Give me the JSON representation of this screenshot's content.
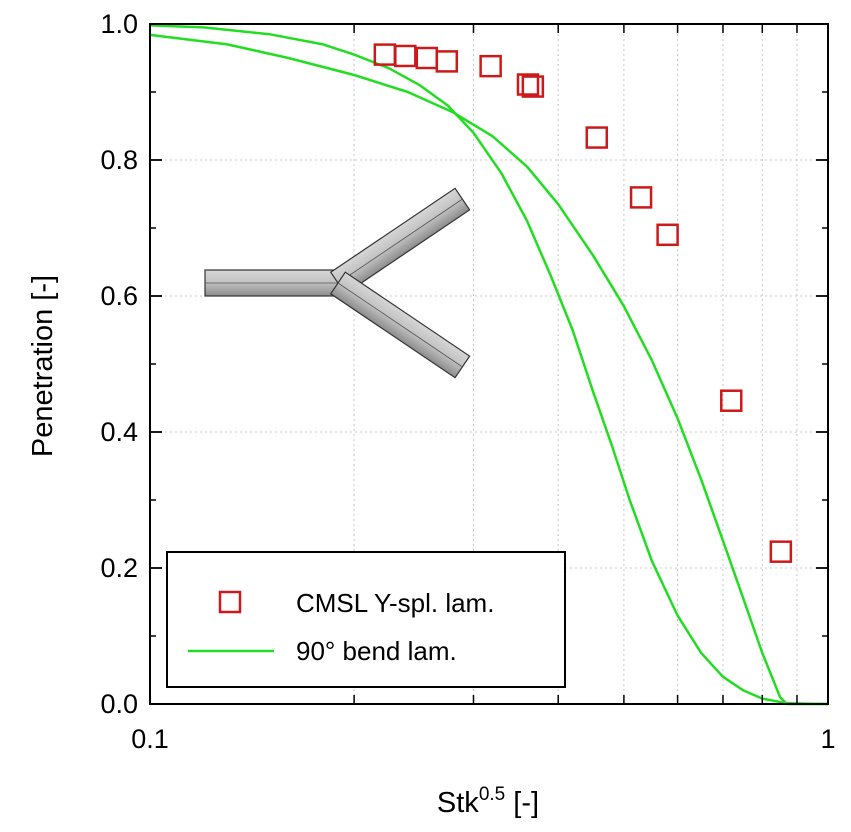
{
  "chart_data": {
    "type": "scatter",
    "xscale": "log",
    "xlim": [
      0.1,
      1
    ],
    "ylim": [
      0.0,
      1.0
    ],
    "x_tick_labels": [
      {
        "value": 0.1,
        "label": "0.1"
      },
      {
        "value": 1,
        "label": "1"
      }
    ],
    "y_tick_labels": [
      {
        "value": 0.0,
        "label": "0.0"
      },
      {
        "value": 0.2,
        "label": "0.2"
      },
      {
        "value": 0.4,
        "label": "0.4"
      },
      {
        "value": 0.6,
        "label": "0.6"
      },
      {
        "value": 0.8,
        "label": "0.8"
      },
      {
        "value": 1.0,
        "label": "1.0"
      }
    ],
    "xlabel": {
      "base": "Stk",
      "sup": "0.5",
      "suffix": " [-]"
    },
    "ylabel": "Penetration [-]",
    "grid": true,
    "legend_position": "bottom-left",
    "series": [
      {
        "name": "CMSL Y-spl. lam.",
        "kind": "markers",
        "marker": "square",
        "color": "#cc1a1a",
        "points": [
          {
            "x": 0.222,
            "y": 0.955
          },
          {
            "x": 0.238,
            "y": 0.953
          },
          {
            "x": 0.256,
            "y": 0.95
          },
          {
            "x": 0.274,
            "y": 0.945
          },
          {
            "x": 0.318,
            "y": 0.938
          },
          {
            "x": 0.361,
            "y": 0.911
          },
          {
            "x": 0.367,
            "y": 0.908
          },
          {
            "x": 0.456,
            "y": 0.833
          },
          {
            "x": 0.53,
            "y": 0.745
          },
          {
            "x": 0.58,
            "y": 0.69
          },
          {
            "x": 0.72,
            "y": 0.446
          },
          {
            "x": 0.852,
            "y": 0.224
          }
        ]
      },
      {
        "name": "90° bend lam.",
        "kind": "line",
        "color": "#22dd22",
        "curves": [
          [
            {
              "x": 0.1,
              "y": 0.998
            },
            {
              "x": 0.12,
              "y": 0.995
            },
            {
              "x": 0.15,
              "y": 0.985
            },
            {
              "x": 0.18,
              "y": 0.97
            },
            {
              "x": 0.2,
              "y": 0.955
            },
            {
              "x": 0.225,
              "y": 0.935
            },
            {
              "x": 0.25,
              "y": 0.91
            },
            {
              "x": 0.275,
              "y": 0.88
            },
            {
              "x": 0.3,
              "y": 0.84
            },
            {
              "x": 0.33,
              "y": 0.78
            },
            {
              "x": 0.36,
              "y": 0.71
            },
            {
              "x": 0.39,
              "y": 0.63
            },
            {
              "x": 0.42,
              "y": 0.55
            },
            {
              "x": 0.45,
              "y": 0.46
            },
            {
              "x": 0.48,
              "y": 0.38
            },
            {
              "x": 0.51,
              "y": 0.3
            },
            {
              "x": 0.55,
              "y": 0.21
            },
            {
              "x": 0.6,
              "y": 0.13
            },
            {
              "x": 0.65,
              "y": 0.075
            },
            {
              "x": 0.7,
              "y": 0.04
            },
            {
              "x": 0.75,
              "y": 0.02
            },
            {
              "x": 0.8,
              "y": 0.008
            },
            {
              "x": 0.87,
              "y": 0.001
            },
            {
              "x": 1.0,
              "y": 0.0
            }
          ],
          [
            {
              "x": 0.1,
              "y": 0.984
            },
            {
              "x": 0.13,
              "y": 0.97
            },
            {
              "x": 0.16,
              "y": 0.95
            },
            {
              "x": 0.2,
              "y": 0.925
            },
            {
              "x": 0.24,
              "y": 0.9
            },
            {
              "x": 0.28,
              "y": 0.87
            },
            {
              "x": 0.32,
              "y": 0.835
            },
            {
              "x": 0.36,
              "y": 0.79
            },
            {
              "x": 0.4,
              "y": 0.735
            },
            {
              "x": 0.45,
              "y": 0.66
            },
            {
              "x": 0.5,
              "y": 0.585
            },
            {
              "x": 0.55,
              "y": 0.505
            },
            {
              "x": 0.6,
              "y": 0.42
            },
            {
              "x": 0.65,
              "y": 0.33
            },
            {
              "x": 0.7,
              "y": 0.24
            },
            {
              "x": 0.75,
              "y": 0.155
            },
            {
              "x": 0.8,
              "y": 0.075
            },
            {
              "x": 0.85,
              "y": 0.01
            },
            {
              "x": 0.87,
              "y": 0.0
            },
            {
              "x": 0.9,
              "y": 0.0
            },
            {
              "x": 1.0,
              "y": 0.0
            }
          ]
        ]
      }
    ],
    "inset_image": "y-splitter-pipe-icon"
  }
}
